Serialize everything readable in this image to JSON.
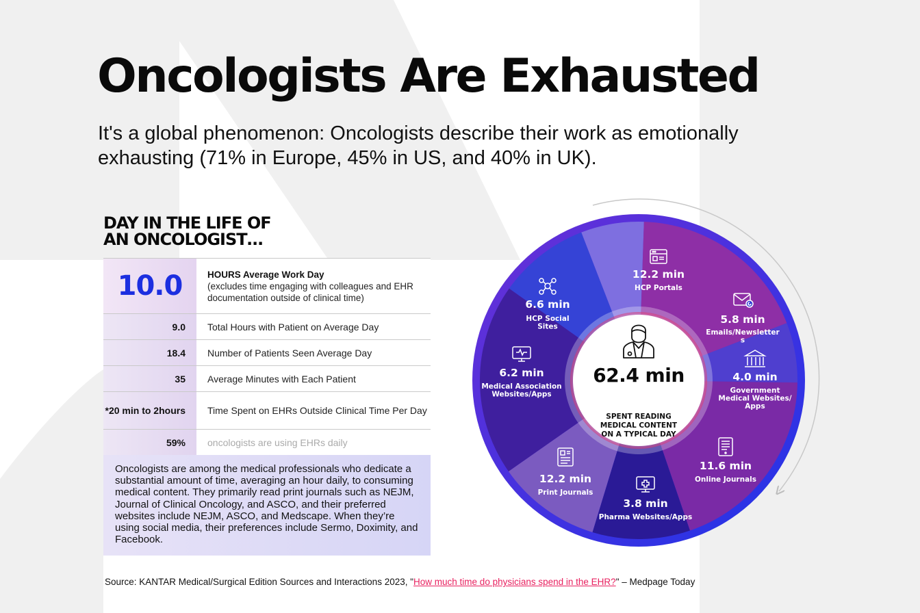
{
  "colors": {
    "accent_blue": "#1c2fe0",
    "link_pink": "#e8205f",
    "background_gray": "#f0f0f0"
  },
  "header": {
    "title": "Oncologists Are Exhausted",
    "subtitle": "It's a global phenomenon: Oncologists describe their work as emotionally exhausting (71% in Europe, 45% in US, and 40% in UK)."
  },
  "day_in_life": {
    "heading_line1": "DAY IN THE LIFE OF",
    "heading_line2": "AN ONCOLOGIST…",
    "hours": {
      "value": "10.0",
      "title": "HOURS Average Work Day",
      "note": "(excludes time engaging with colleagues and EHR documentation outside of clinical time)"
    },
    "stats": [
      {
        "value": "9.0",
        "label": "Total Hours with Patient on Average Day"
      },
      {
        "value": "18.4",
        "label": "Number of Patients Seen Average Day"
      },
      {
        "value": "35",
        "label": "Average Minutes with Each Patient"
      },
      {
        "value_line1": "*20 min to 2",
        "value_line2": "hours",
        "label": "Time Spent on EHRs Outside Clinical Time Per Day"
      },
      {
        "value": "59%",
        "label": "oncologists are using EHRs daily"
      }
    ],
    "summary": "Oncologists are among the medical professionals who dedicate a substantial amount of time, averaging an hour daily, to consuming medical content. They primarily read print journals such as NEJM, Journal of Clinical Oncology, and ASCO, and their preferred websites include NEJM, ASCO, and Medscape. When they’re using social media, their preferences include Sermo, Doximity, and Facebook."
  },
  "source": {
    "prefix": "Source: KANTAR Medical/Surgical Edition Sources and Interactions 2023, \"",
    "link_text": "How much time do physicians spend in the EHR?",
    "suffix": "\" – Medpage Today"
  },
  "chart_data": {
    "type": "pie",
    "donut": true,
    "unit": "min",
    "total": {
      "value": "62.4 min",
      "caption_lines": [
        "SPENT READING",
        "MEDICAL CONTENT",
        "ON A TYPICAL DAY"
      ]
    },
    "segments": [
      {
        "value": 12.2,
        "value_label": "12.2 min",
        "name_lines": [
          "HCP Portals"
        ],
        "color": "#3f1f9e",
        "icon": "portal-icon"
      },
      {
        "value": 5.8,
        "value_label": "5.8 min",
        "name_lines": [
          "Emails/Newsletter",
          "s"
        ],
        "color": "#3543d6",
        "icon": "email-icon"
      },
      {
        "value": 4.0,
        "value_label": "4.0 min",
        "name_lines": [
          "Government",
          "Medical Websites/",
          "Apps"
        ],
        "color": "#7e6fe0",
        "icon": "government-building-icon"
      },
      {
        "value": 11.6,
        "value_label": "11.6 min",
        "name_lines": [
          "Online Journals"
        ],
        "color": "#8e2fa6",
        "icon": "online-journal-icon"
      },
      {
        "value": 3.8,
        "value_label": "3.8 min",
        "name_lines": [
          "Pharma Websites/Apps"
        ],
        "color": "#4f3fcf",
        "icon": "pharma-app-icon"
      },
      {
        "value": 12.2,
        "value_label": "12.2 min",
        "name_lines": [
          "Print Journals"
        ],
        "color": "#7a2aa6",
        "icon": "newspaper-icon"
      },
      {
        "value": 6.2,
        "value_label": "6.2 min",
        "name_lines": [
          "Medical Association",
          "Websites/Apps"
        ],
        "color": "#2a1a96",
        "icon": "monitor-icon"
      },
      {
        "value": 6.6,
        "value_label": "6.6 min",
        "name_lines": [
          "HCP Social",
          "Sites"
        ],
        "color": "#7b5bc0",
        "icon": "social-network-icon"
      }
    ]
  }
}
